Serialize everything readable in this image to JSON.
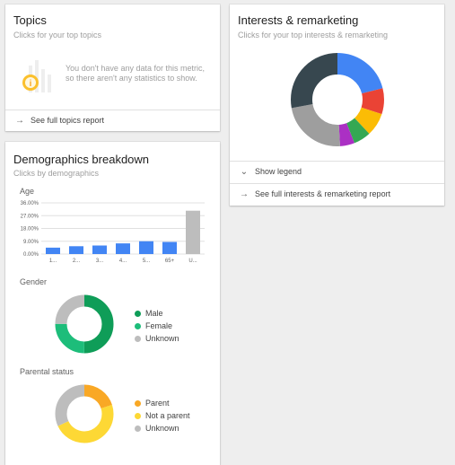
{
  "topics": {
    "title": "Topics",
    "subtitle": "Clicks for your top topics",
    "empty_message": "You don't have any data for this metric, so there aren't any statistics to show.",
    "link_label": "See full topics report"
  },
  "interests": {
    "title": "Interests & remarketing",
    "subtitle": "Clicks for your top interests & remarketing",
    "show_legend_label": "Show legend",
    "link_label": "See full interests & remarketing report",
    "donut": [
      {
        "value": 21,
        "color": "#4285f4"
      },
      {
        "value": 9,
        "color": "#ea4335"
      },
      {
        "value": 8,
        "color": "#fbbc05"
      },
      {
        "value": 6,
        "color": "#34a853"
      },
      {
        "value": 5,
        "color": "#ab30c4"
      },
      {
        "value": 23,
        "color": "#9e9e9e"
      },
      {
        "value": 28,
        "color": "#37474f"
      }
    ]
  },
  "demographics": {
    "title": "Demographics breakdown",
    "subtitle": "Clicks by demographics",
    "age_label": "Age",
    "gender_label": "Gender",
    "gender_legend": [
      "Male",
      "Female",
      "Unknown"
    ],
    "parental_label": "Parental status",
    "parental_legend": [
      "Parent",
      "Not a parent",
      "Unknown"
    ]
  },
  "chart_data": [
    {
      "type": "bar",
      "title": "Age",
      "categories": [
        "1...",
        "2...",
        "3...",
        "4...",
        "5...",
        "65+",
        "U..."
      ],
      "values": [
        4.5,
        5.5,
        6.0,
        7.5,
        9.0,
        8.5,
        30.5
      ],
      "colors": [
        "#4285f4",
        "#4285f4",
        "#4285f4",
        "#4285f4",
        "#4285f4",
        "#4285f4",
        "#bdbdbd"
      ],
      "yticks": [
        "0.00%",
        "9.00%",
        "18.00%",
        "27.00%",
        "36.00%"
      ],
      "ylim": [
        0,
        36
      ],
      "grid": true
    },
    {
      "type": "pie",
      "title": "Gender",
      "labels": [
        "Male",
        "Female",
        "Unknown"
      ],
      "values": [
        50,
        25,
        25
      ],
      "colors": [
        "#0f9d58",
        "#1dbd7a",
        "#bdbdbd"
      ]
    },
    {
      "type": "pie",
      "title": "Parental status",
      "labels": [
        "Parent",
        "Not a parent",
        "Unknown"
      ],
      "values": [
        20,
        48,
        32
      ],
      "colors": [
        "#f9a825",
        "#fdd835",
        "#bdbdbd"
      ]
    }
  ]
}
